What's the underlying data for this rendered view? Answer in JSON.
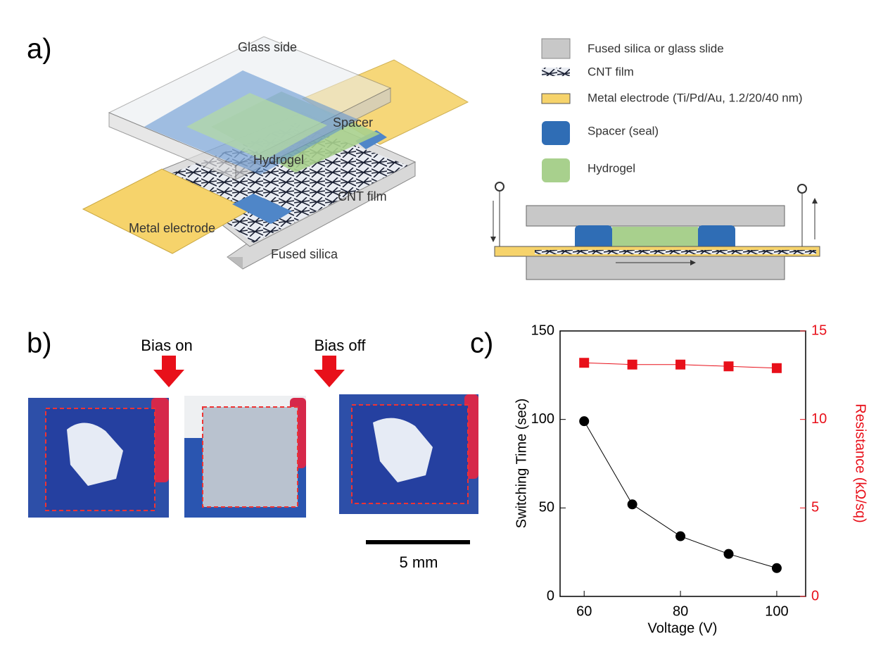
{
  "panels": {
    "a": "a)",
    "b": "b)",
    "c": "c)"
  },
  "diagram": {
    "glass_side": "Glass side",
    "spacer": "Spacer",
    "hydrogel": "Hydrogel",
    "cnt_film": "CNT film",
    "metal_electrode": "Metal electrode",
    "fused_silica": "Fused silica"
  },
  "legend": [
    "Fused silica or glass slide",
    "CNT film",
    "Metal electrode (Ti/Pd/Au, 1.2/20/40 nm)",
    "Spacer (seal)",
    "Hydrogel"
  ],
  "photos": {
    "bias_on": "Bias on",
    "bias_off": "Bias off",
    "scale_bar": "5 mm"
  },
  "chart_data": {
    "type": "line",
    "x": [
      60,
      70,
      80,
      90,
      100
    ],
    "xlim": [
      55,
      106
    ],
    "xticks": [
      60,
      80,
      100
    ],
    "ylim": [
      0,
      150
    ],
    "yticks": [
      0,
      50,
      100,
      150
    ],
    "y2lim": [
      0,
      15
    ],
    "y2ticks": [
      0,
      5,
      10,
      15
    ],
    "x_label": "Voltage (V)",
    "y_label": "Switching Time (sec)",
    "y2_label": "Resistance (kΩ/sq)",
    "y2_color": "#e8101a",
    "series": [
      {
        "color": "#000000",
        "marker": "circle",
        "values": [
          99,
          52,
          34,
          24,
          16
        ]
      },
      {
        "color": "#e8101a",
        "marker": "square",
        "axis": "y2",
        "values": [
          13.2,
          13.1,
          13.1,
          13.0,
          12.9
        ]
      }
    ]
  }
}
